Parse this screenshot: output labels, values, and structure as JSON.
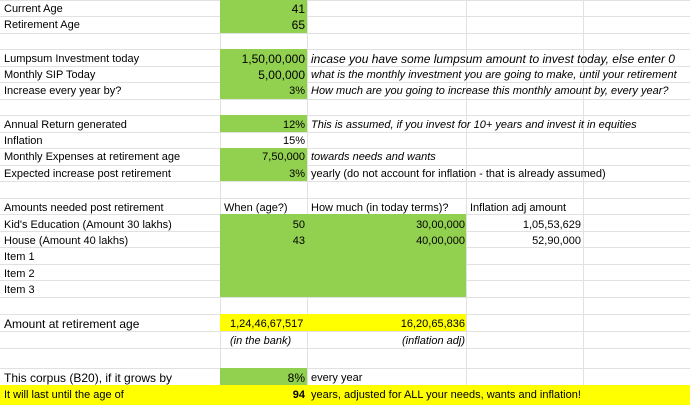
{
  "colors": {
    "green": "#92d050",
    "yellow": "#ffff00",
    "gridline": "#e1e1e1"
  },
  "labels": {
    "current_age": "Current Age",
    "retirement_age": "Retirement Age",
    "lumpsum": "Lumpsum Investment today",
    "monthly_sip": "Monthly SIP Today",
    "increase": "Increase every year by?",
    "annual_return": "Annual Return generated",
    "inflation": "Inflation",
    "monthly_expenses": "Monthly Expenses at retirement age",
    "expected_increase": "Expected increase post retirement",
    "amounts_needed": "Amounts needed post retirement",
    "amount_at_retirement": "Amount at retirement age",
    "corpus_grows": "This corpus (B20), if it grows by",
    "last_until": "It will last until the age of"
  },
  "values": {
    "current_age": "41",
    "retirement_age": "65",
    "lumpsum": "1,50,00,000",
    "monthly_sip": "5,00,000",
    "increase": "3%",
    "annual_return": "12%",
    "inflation": "15%",
    "monthly_expenses": "7,50,000",
    "expected_increase": "3%"
  },
  "notes": {
    "lumpsum": "incase you have some lumpsum amount to invest today, else enter 0",
    "monthly_sip": "what is the monthly investment you are going to make, until your retirement",
    "increase": "How much are you going to increase this monthly amount by, every year?",
    "annual_return": "This is assumed, if you invest for 10+ years and invest it in equities",
    "monthly_expenses": "towards needs and wants",
    "expected_increase": "yearly (do not account for inflation - that is already assumed)"
  },
  "table": {
    "headers": [
      "When (age?)",
      "How much (in today terms)?",
      "Inflation adj amount"
    ],
    "rows": [
      {
        "item": "Kid's Education (Amount 30 lakhs)",
        "age": "50",
        "amount": "30,00,000",
        "adjusted": "1,05,53,629"
      },
      {
        "item": "House (Amount 40 lakhs)",
        "age": "43",
        "amount": "40,00,000",
        "adjusted": "52,90,000"
      },
      {
        "item": "Item 1"
      },
      {
        "item": "Item 2"
      },
      {
        "item": "Item 3"
      }
    ]
  },
  "results": {
    "amount_bank": "1,24,46,67,517",
    "amount_inflation_adj": "16,20,65,836",
    "caption_bank": "(in the bank)",
    "caption_inflation_adj": "(inflation adj)",
    "corpus_growth": "8%",
    "every_year": "every year",
    "last_until_age": "94",
    "adjusted_note": "years, adjusted for ALL your needs, wants and inflation!"
  }
}
